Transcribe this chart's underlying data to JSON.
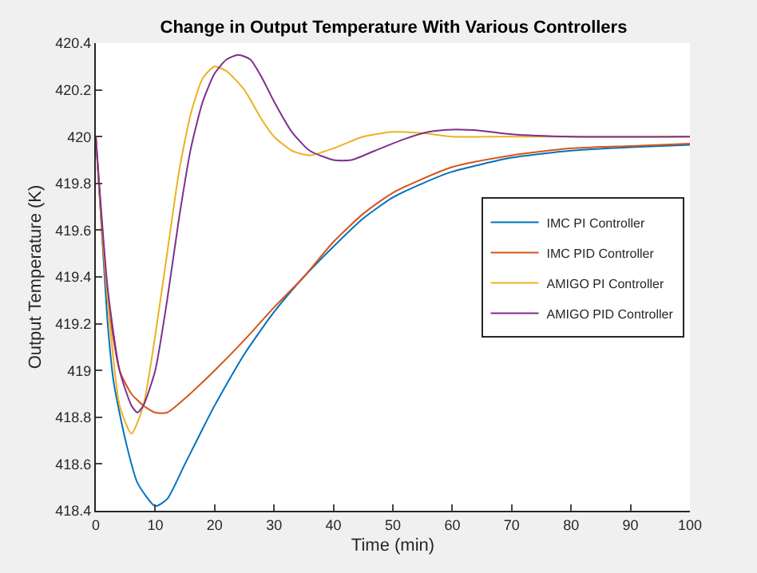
{
  "chart_data": {
    "type": "line",
    "title": "Change in Output Temperature With Various Controllers",
    "xlabel": "Time (min)",
    "ylabel": "Output Temperature (K)",
    "xlim": [
      0,
      100
    ],
    "xticks": [
      0,
      10,
      20,
      30,
      40,
      50,
      60,
      70,
      80,
      90,
      100
    ],
    "ylim": [
      418.4,
      420.4
    ],
    "yticks": [
      418.4,
      418.6,
      418.8,
      419,
      419.2,
      419.4,
      419.6,
      419.8,
      420,
      420.2,
      420.4
    ],
    "grid": false,
    "legend": "top right",
    "marker": "none",
    "line_style": "solid",
    "series": [
      {
        "name": "IMC PI Controller",
        "color": "#0072bd",
        "x": [
          0,
          1,
          2,
          3,
          5,
          7,
          10,
          12,
          15,
          20,
          25,
          30,
          35,
          40,
          45,
          50,
          55,
          60,
          70,
          80,
          90,
          100
        ],
        "values": [
          420,
          419.6,
          419.2,
          418.95,
          418.7,
          418.52,
          418.42,
          418.45,
          418.6,
          418.85,
          419.07,
          419.25,
          419.4,
          419.53,
          419.65,
          419.74,
          419.8,
          419.85,
          419.91,
          419.94,
          419.955,
          419.965
        ]
      },
      {
        "name": "IMC PID Controller",
        "color": "#d95319",
        "x": [
          0,
          1,
          2,
          4,
          6,
          8,
          10,
          12,
          15,
          20,
          25,
          30,
          35,
          40,
          45,
          50,
          60,
          70,
          80,
          90,
          100
        ],
        "values": [
          420,
          419.6,
          419.3,
          419.0,
          418.9,
          418.85,
          418.82,
          418.82,
          418.88,
          419.0,
          419.13,
          419.27,
          419.4,
          419.55,
          419.67,
          419.76,
          419.87,
          419.92,
          419.95,
          419.96,
          419.97
        ]
      },
      {
        "name": "AMIGO PI Controller",
        "color": "#edb120",
        "x": [
          0,
          2,
          4,
          6,
          8,
          10,
          12,
          14,
          16,
          18,
          20,
          22,
          25,
          28,
          30,
          33,
          36,
          40,
          45,
          50,
          55,
          60,
          70,
          100
        ],
        "values": [
          420,
          419.3,
          418.85,
          418.73,
          418.85,
          419.15,
          419.5,
          419.85,
          420.1,
          420.25,
          420.3,
          420.28,
          420.2,
          420.07,
          420.0,
          419.94,
          419.92,
          419.95,
          420.0,
          420.02,
          420.015,
          420.0,
          420.0,
          420.0
        ]
      },
      {
        "name": "AMIGO PID Controller",
        "color": "#7e2f8e",
        "x": [
          0,
          2,
          4,
          6,
          7,
          8,
          10,
          12,
          14,
          16,
          18,
          20,
          22,
          24,
          26,
          28,
          30,
          33,
          36,
          40,
          43,
          47,
          52,
          56,
          60,
          65,
          70,
          80,
          100
        ],
        "values": [
          420,
          419.35,
          419.0,
          418.85,
          418.82,
          418.85,
          419.0,
          419.3,
          419.65,
          419.95,
          420.15,
          420.27,
          420.33,
          420.35,
          420.33,
          420.25,
          420.15,
          420.02,
          419.94,
          419.9,
          419.9,
          419.94,
          419.99,
          420.02,
          420.03,
          420.025,
          420.01,
          420.0,
          420.0
        ]
      }
    ]
  }
}
